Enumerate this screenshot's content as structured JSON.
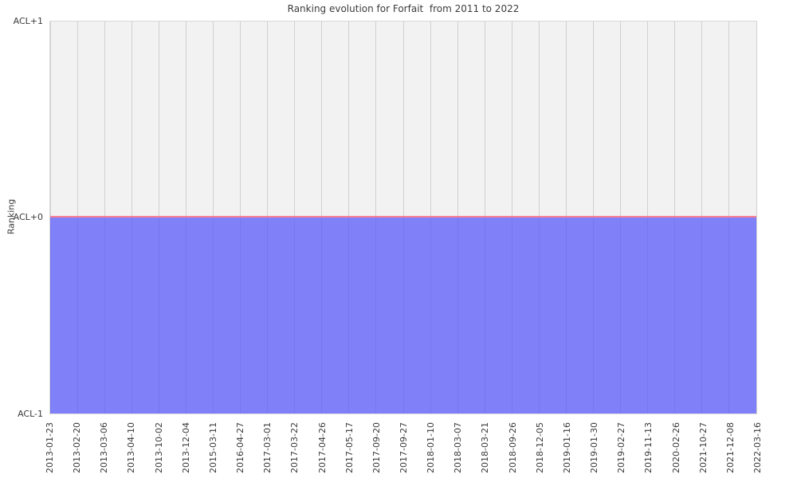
{
  "chart_data": {
    "type": "line",
    "title": "Ranking evolution for Forfait  from 2011 to 2022",
    "xlabel": "",
    "ylabel": "Ranking",
    "x": [
      "2013-01-23",
      "2013-02-20",
      "2013-03-06",
      "2013-04-10",
      "2013-10-02",
      "2013-12-04",
      "2015-03-11",
      "2016-04-27",
      "2017-03-01",
      "2017-03-22",
      "2017-04-26",
      "2017-05-17",
      "2017-09-20",
      "2017-09-27",
      "2018-01-10",
      "2018-03-07",
      "2018-03-21",
      "2018-09-26",
      "2018-12-05",
      "2019-01-16",
      "2019-01-30",
      "2019-02-27",
      "2019-11-13",
      "2020-02-26",
      "2021-10-27",
      "2021-12-08",
      "2022-03-16"
    ],
    "y": [
      0,
      0,
      0,
      0,
      0,
      0,
      0,
      0,
      0,
      0,
      0,
      0,
      0,
      0,
      0,
      0,
      0,
      0,
      0,
      0,
      0,
      0,
      0,
      0,
      0,
      0,
      0
    ],
    "y_constant_tick": "ACL+0",
    "yticks": [
      "ACL+1",
      "ACL+0",
      "ACL-1"
    ],
    "ytick_values": [
      1,
      0,
      -1
    ],
    "ylim": [
      -1,
      1
    ],
    "area_fill_between": [
      0,
      -1
    ],
    "grid": "vertical-only",
    "legend": "none",
    "colors": {
      "line": "#fa8094",
      "fill": "rgba(90,90,250,0.75)",
      "fill_apparent": "#8080f8",
      "plot_bg": "#f2f2f2",
      "grid": "#d0d0d0",
      "spine": "#d9d9d9",
      "text": "#3a3a3a"
    }
  }
}
